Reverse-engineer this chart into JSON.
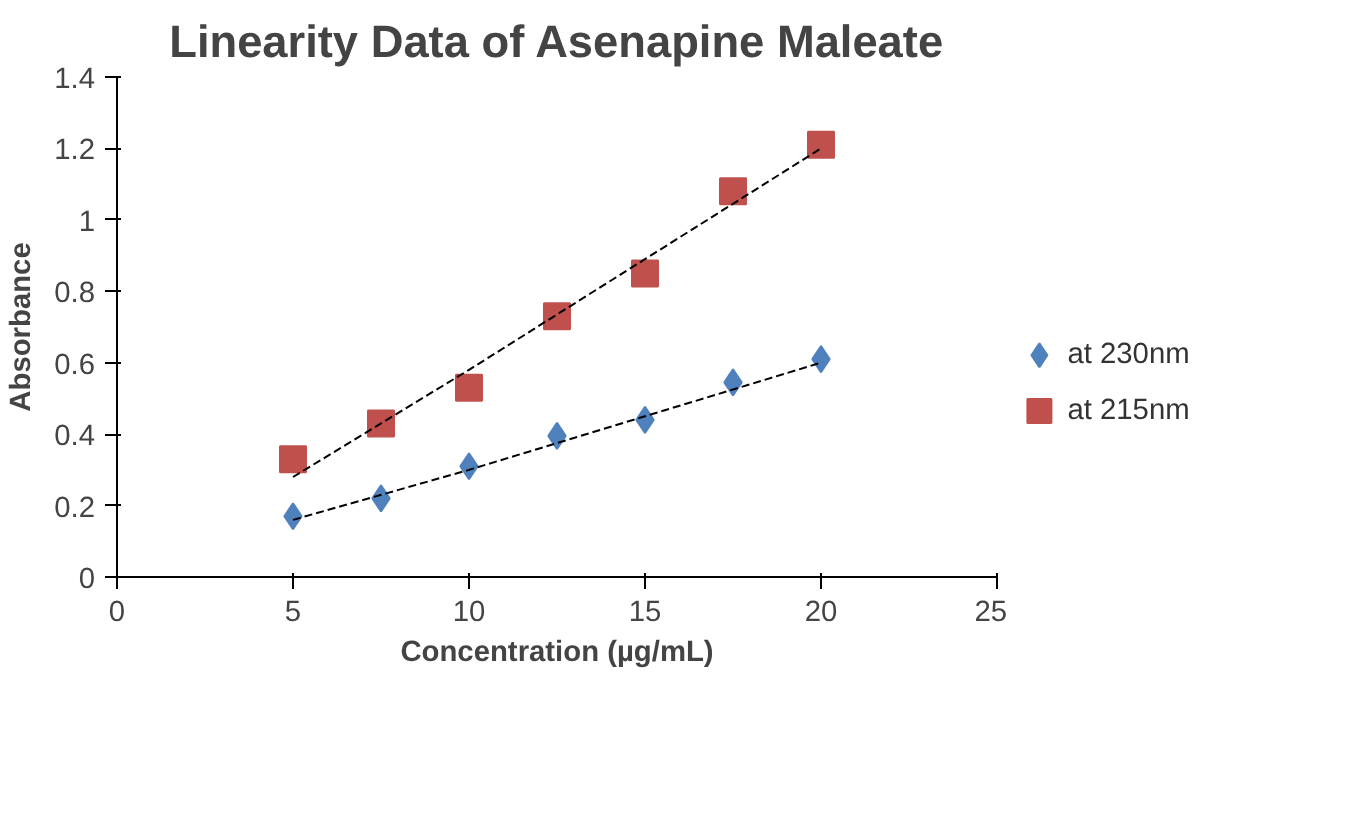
{
  "chart_data": {
    "type": "scatter",
    "title": "Linearity Data of Asenapine Maleate",
    "xlabel": "Concentration (µg/mL)",
    "ylabel": "Absorbance",
    "x": [
      5,
      7.5,
      10,
      12.5,
      15,
      17.5,
      20
    ],
    "series": [
      {
        "name": "at 230nm",
        "color": "#4f81bd",
        "marker": "diamond",
        "values": [
          0.17,
          0.22,
          0.31,
          0.395,
          0.44,
          0.545,
          0.61
        ]
      },
      {
        "name": "at 215nm",
        "color": "#c0504d",
        "marker": "square",
        "values": [
          0.33,
          0.43,
          0.53,
          0.73,
          0.85,
          1.08,
          1.21
        ]
      },
      {
        "type": "line",
        "color": "#000000",
        "line_style": "dashed",
        "x": [
          5,
          10,
          15,
          20
        ],
        "values": [
          0.16,
          0.3,
          0.45,
          0.6
        ]
      },
      {
        "type": "line",
        "color": "#000000",
        "line_style": "dashed",
        "x": [
          5,
          10,
          15,
          20
        ],
        "values": [
          0.28,
          0.58,
          0.89,
          1.2
        ]
      }
    ],
    "xlim": [
      0,
      25
    ],
    "xticks": [
      0,
      5,
      10,
      15,
      20,
      25
    ],
    "ylim": [
      0,
      1.4
    ],
    "yticks": [
      0,
      0.2,
      0.4,
      0.6,
      0.8,
      1,
      1.2,
      1.4
    ],
    "grid": false,
    "legend": "right"
  }
}
